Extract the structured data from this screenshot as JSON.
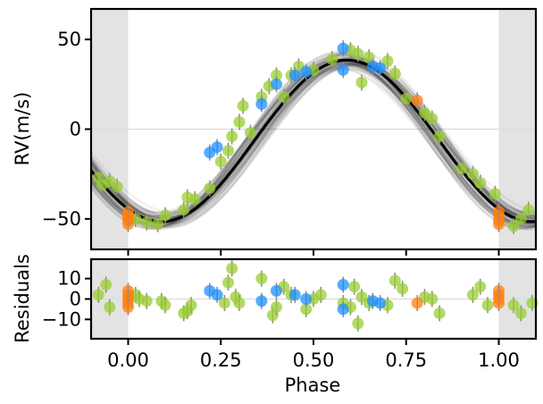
{
  "chart_data": [
    {
      "type": "scatter",
      "name": "rv-panel",
      "ylabel": "RV(m/s)",
      "xlim": [
        -0.1,
        1.1
      ],
      "ylim": [
        -67,
        67
      ],
      "yticks": [
        50,
        0,
        -50
      ],
      "ytick_labels": [
        "50",
        "0",
        "−50"
      ],
      "shaded_regions": [
        [
          -0.1,
          0.0
        ],
        [
          1.0,
          1.1
        ]
      ],
      "zero_line": 0,
      "model": {
        "name": "best-fit model",
        "form": "sinusoid",
        "mean": -6.5,
        "amplitude": 45,
        "phase_of_max": 0.59,
        "color": "#000000"
      },
      "series": [
        {
          "name": "green",
          "color": "#9acd32",
          "x": [
            -0.08,
            -0.07,
            -0.05,
            -0.03,
            0.02,
            0.05,
            0.08,
            0.1,
            0.15,
            0.16,
            0.18,
            0.22,
            0.25,
            0.27,
            0.28,
            0.3,
            0.31,
            0.33,
            0.36,
            0.38,
            0.4,
            0.42,
            0.44,
            0.46,
            0.5,
            0.55,
            0.6,
            0.62,
            0.63,
            0.65,
            0.7,
            0.72,
            0.75,
            0.8,
            0.82,
            0.84,
            0.9,
            0.93,
            0.95,
            0.99,
            1.04,
            1.06,
            1.08
          ],
          "y": [
            -27,
            -31,
            -29,
            -32,
            -50,
            -52,
            -53,
            -48,
            -45,
            -38,
            -39,
            -33,
            -18,
            -12,
            -4,
            4,
            13,
            -2,
            18,
            24,
            30,
            18,
            30,
            35,
            33,
            39,
            44,
            42,
            26,
            40,
            38,
            31,
            17,
            9,
            6,
            -4,
            -22,
            -25,
            -30,
            -36,
            -54,
            -50,
            -45
          ]
        },
        {
          "name": "blue",
          "color": "#1e90ff",
          "x": [
            0.22,
            0.24,
            0.36,
            0.4,
            0.45,
            0.48,
            0.58,
            0.58,
            0.66,
            0.68
          ],
          "y": [
            -13,
            -10,
            14,
            25,
            30,
            32,
            45,
            33,
            35,
            34
          ]
        },
        {
          "name": "orange",
          "color": "#ff7f0e",
          "x": [
            0.0,
            0.0,
            0.0,
            0.0,
            0.0,
            0.78,
            1.0,
            1.0,
            1.0,
            1.0
          ],
          "y": [
            -46,
            -48,
            -51,
            -53,
            -49,
            16,
            -46,
            -48,
            -51,
            -53
          ]
        }
      ]
    },
    {
      "type": "scatter",
      "name": "residuals-panel",
      "xlabel": "Phase",
      "ylabel": "Residuals",
      "xlim": [
        -0.1,
        1.1
      ],
      "ylim": [
        -19.5,
        19.5
      ],
      "yticks": [
        10,
        0,
        -10
      ],
      "ytick_labels": [
        "10",
        "0",
        "−10"
      ],
      "xticks": [
        0.0,
        0.25,
        0.5,
        0.75,
        1.0
      ],
      "xtick_labels": [
        "0.00",
        "0.25",
        "0.50",
        "0.75",
        "1.00"
      ],
      "shaded_regions": [
        [
          -0.1,
          0.0
        ],
        [
          1.0,
          1.1
        ]
      ],
      "zero_line": 0,
      "series": [
        {
          "name": "green",
          "color": "#9acd32",
          "x": [
            -0.08,
            -0.06,
            -0.05,
            0.02,
            0.03,
            0.05,
            0.09,
            0.1,
            0.15,
            0.16,
            0.17,
            0.26,
            0.27,
            0.28,
            0.29,
            0.3,
            0.36,
            0.39,
            0.4,
            0.42,
            0.44,
            0.48,
            0.5,
            0.52,
            0.58,
            0.6,
            0.61,
            0.62,
            0.63,
            0.65,
            0.7,
            0.72,
            0.74,
            0.8,
            0.82,
            0.84,
            0.93,
            0.95,
            0.97,
            1.04,
            1.06,
            1.09
          ],
          "y": [
            2,
            7,
            -4,
            2,
            0,
            -1,
            -1,
            -3,
            -7,
            -6,
            -3,
            -2,
            8,
            15,
            1,
            -2,
            10,
            -8,
            -4,
            6,
            2,
            -5,
            0,
            2,
            -2,
            -4,
            6,
            -12,
            1,
            -2,
            -3,
            9,
            5,
            1,
            0,
            -7,
            2,
            6,
            -3,
            -3,
            -7,
            -2
          ]
        },
        {
          "name": "blue",
          "color": "#1e90ff",
          "x": [
            0.22,
            0.24,
            0.36,
            0.4,
            0.45,
            0.48,
            0.58,
            0.58,
            0.66,
            0.68
          ],
          "y": [
            4,
            2,
            -1,
            4,
            2,
            0,
            7,
            -5,
            -1,
            -2
          ]
        },
        {
          "name": "orange",
          "color": "#ff7f0e",
          "x": [
            0.0,
            0.0,
            0.0,
            0.0,
            0.0,
            0.78,
            1.0,
            1.0,
            1.0,
            1.0
          ],
          "y": [
            4,
            2,
            0,
            -2,
            -4,
            -2,
            4,
            2,
            0,
            -2
          ]
        }
      ]
    }
  ]
}
